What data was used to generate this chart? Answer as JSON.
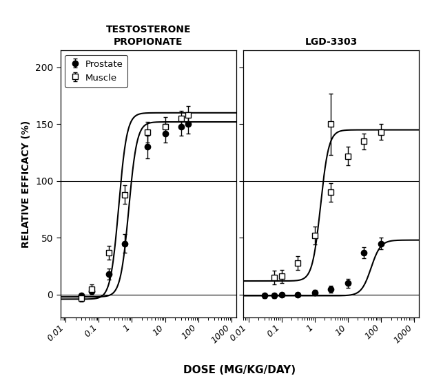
{
  "title_left": "TESTOSTERONE\nPROPIONATE",
  "title_right": "LGD-3303",
  "xlabel": "DOSE (MG/KG/DAY)",
  "ylabel": "RELATIVE EFFICACY (%)",
  "ylim": [
    -20,
    215
  ],
  "yticks": [
    0,
    50,
    100,
    150,
    200
  ],
  "xlim": [
    0.007,
    1400
  ],
  "tp_prostate_x": [
    0.03,
    0.06,
    0.2,
    0.6,
    3,
    10,
    30,
    50
  ],
  "tp_prostate_y": [
    -1,
    3,
    18,
    45,
    130,
    142,
    148,
    150
  ],
  "tp_prostate_yerr": [
    2,
    3,
    5,
    8,
    10,
    8,
    8,
    8
  ],
  "tp_muscle_x": [
    0.03,
    0.06,
    0.2,
    0.6,
    3,
    10,
    30,
    50
  ],
  "tp_muscle_y": [
    -3,
    5,
    37,
    88,
    143,
    148,
    155,
    158
  ],
  "tp_muscle_yerr": [
    3,
    4,
    6,
    8,
    9,
    8,
    7,
    8
  ],
  "tp_prostate_curve_ec50": 0.8,
  "tp_prostate_curve_n": 3.5,
  "tp_prostate_curve_emax": 152,
  "tp_prostate_curve_emin": -2,
  "tp_muscle_curve_ec50": 0.4,
  "tp_muscle_curve_n": 3.5,
  "tp_muscle_curve_emax": 160,
  "tp_muscle_curve_emin": -4,
  "lgd_prostate_x": [
    0.03,
    0.06,
    0.1,
    0.3,
    1,
    3,
    10,
    30,
    100
  ],
  "lgd_prostate_y": [
    -1,
    -1,
    0,
    0,
    2,
    5,
    10,
    37,
    45
  ],
  "lgd_prostate_yerr": [
    2,
    2,
    2,
    2,
    2,
    3,
    4,
    5,
    5
  ],
  "lgd_muscle_x": [
    0.06,
    0.1,
    0.3,
    1,
    3,
    10,
    30,
    100
  ],
  "lgd_muscle_y": [
    15,
    16,
    28,
    52,
    90,
    122,
    135,
    143
  ],
  "lgd_muscle_yerr": [
    6,
    6,
    6,
    8,
    8,
    8,
    7,
    7
  ],
  "lgd_muscle_outlier_x": 3,
  "lgd_muscle_outlier_y": 150,
  "lgd_muscle_outlier_yerr": 27,
  "lgd_prostate_curve_ec50": 50,
  "lgd_prostate_curve_n": 3.0,
  "lgd_prostate_curve_emax": 48,
  "lgd_prostate_curve_emin": -1,
  "lgd_muscle_curve_ec50": 1.5,
  "lgd_muscle_curve_n": 3.5,
  "lgd_muscle_curve_emax": 145,
  "lgd_muscle_curve_emin": 12,
  "line_color": "#000000",
  "prostate_marker": "o",
  "muscle_marker": "s",
  "marker_size": 6,
  "bg_color": "#ffffff",
  "legend_prostate": "Prostate",
  "legend_muscle": "Muscle"
}
